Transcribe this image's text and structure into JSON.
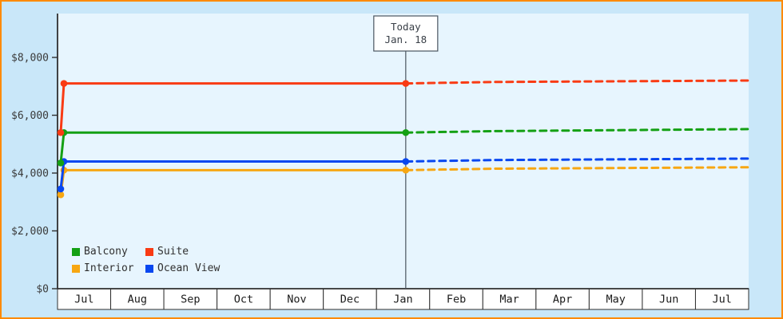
{
  "frame": {
    "border_color": "#ff8a00",
    "outer_bg": "#c9e7f9",
    "plot_bg": "#e7f5fe",
    "axis_color": "#2f2f2f",
    "month_cell_fill": "#ffffff",
    "today_line_color": "#4a5560",
    "today_box_fill": "#ffffff"
  },
  "chart_data": {
    "type": "line",
    "title": "",
    "x_axis": {
      "xlim_months": [
        0,
        13
      ],
      "month_labels": [
        "Jul",
        "Aug",
        "Sep",
        "Oct",
        "Nov",
        "Dec",
        "Jan",
        "Feb",
        "Mar",
        "Apr",
        "May",
        "Jun",
        "Jul"
      ]
    },
    "y_axis": {
      "ylim": [
        0,
        8000
      ],
      "yticks": [
        0,
        2000,
        4000,
        6000,
        8000
      ],
      "ytick_labels": [
        "$0",
        "$2,000",
        "$4,000",
        "$6,000",
        "$8,000"
      ]
    },
    "today": {
      "line1": "Today",
      "line2": "Jan. 18",
      "month_pos": 6.55
    },
    "series": [
      {
        "name": "Balcony",
        "color": "#14a014",
        "history": [
          {
            "m": 0.06,
            "v": 4350
          },
          {
            "m": 0.12,
            "v": 5400
          },
          {
            "m": 6.55,
            "v": 5400
          }
        ],
        "forecast": [
          {
            "m": 6.55,
            "v": 5400
          },
          {
            "m": 8.2,
            "v": 5450
          },
          {
            "m": 13,
            "v": 5520
          }
        ]
      },
      {
        "name": "Suite",
        "color": "#f93b14",
        "history": [
          {
            "m": 0.06,
            "v": 5400
          },
          {
            "m": 0.12,
            "v": 7100
          },
          {
            "m": 6.55,
            "v": 7100
          }
        ],
        "forecast": [
          {
            "m": 6.55,
            "v": 7100
          },
          {
            "m": 8.2,
            "v": 7150
          },
          {
            "m": 13,
            "v": 7200
          }
        ]
      },
      {
        "name": "Interior",
        "color": "#f7a712",
        "history": [
          {
            "m": 0.06,
            "v": 3250
          },
          {
            "m": 0.12,
            "v": 4100
          },
          {
            "m": 6.55,
            "v": 4100
          }
        ],
        "forecast": [
          {
            "m": 6.55,
            "v": 4100
          },
          {
            "m": 8.2,
            "v": 4150
          },
          {
            "m": 13,
            "v": 4200
          }
        ]
      },
      {
        "name": "Ocean View",
        "color": "#0847f0",
        "history": [
          {
            "m": 0.06,
            "v": 3450
          },
          {
            "m": 0.12,
            "v": 4400
          },
          {
            "m": 6.55,
            "v": 4400
          }
        ],
        "forecast": [
          {
            "m": 6.55,
            "v": 4400
          },
          {
            "m": 8.2,
            "v": 4450
          },
          {
            "m": 13,
            "v": 4500
          }
        ]
      }
    ],
    "legend": {
      "position": "bottom-left",
      "rows": [
        [
          "Balcony",
          "Suite"
        ],
        [
          "Interior",
          "Ocean View"
        ]
      ]
    }
  }
}
